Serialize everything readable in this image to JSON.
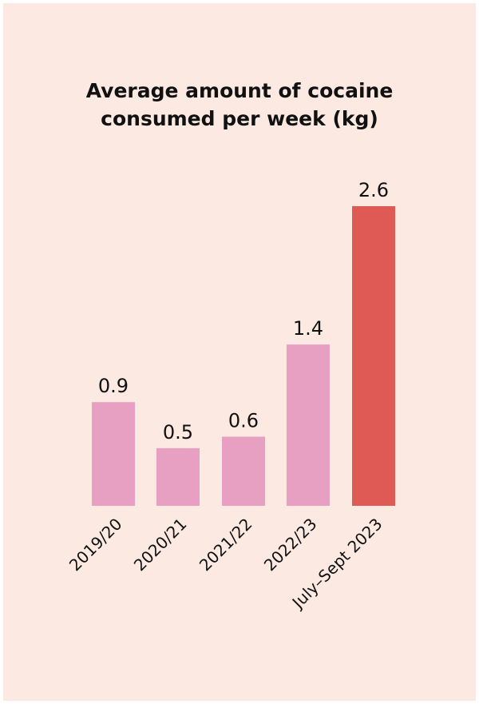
{
  "chart_data": {
    "type": "bar",
    "title_lines": [
      "Average amount of cocaine",
      "consumed per week (kg)"
    ],
    "categories": [
      "2019/20",
      "2020/21",
      "2021/22",
      "2022/23",
      "July–Sept 2023"
    ],
    "values": [
      0.9,
      0.5,
      0.6,
      1.4,
      2.6
    ],
    "value_labels": [
      "0.9",
      "0.5",
      "0.6",
      "1.4",
      "2.6"
    ],
    "colors": [
      "#e8a0c2",
      "#e8a0c2",
      "#e8a0c2",
      "#e8a0c2",
      "#e05a55"
    ],
    "background": "#fbe9e2",
    "ylim": [
      0,
      2.6
    ],
    "xlabel": "",
    "ylabel": "",
    "grid": false,
    "legend": "none"
  }
}
